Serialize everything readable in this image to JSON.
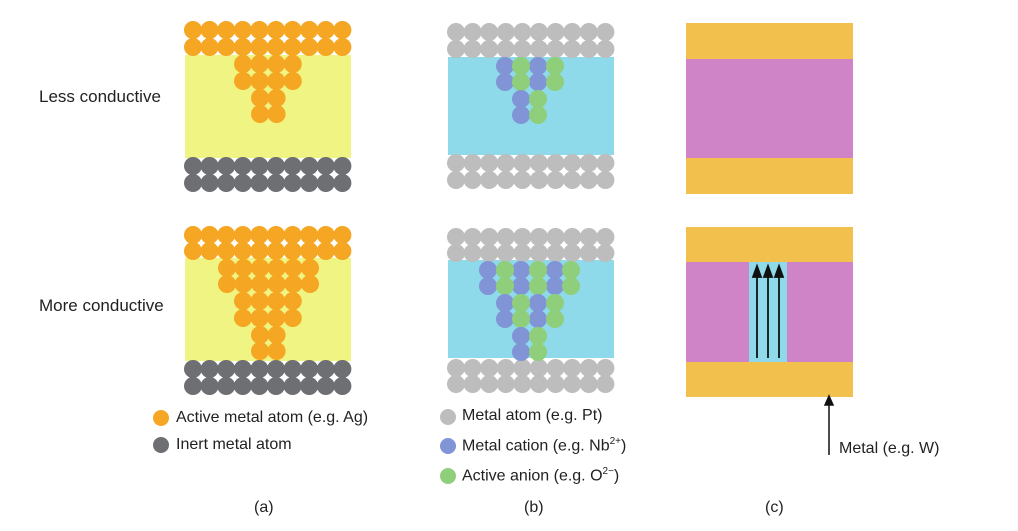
{
  "rows": {
    "top_label": "Less conductive",
    "bottom_label": "More conductive"
  },
  "panels": {
    "a": "(a)",
    "b": "(b)",
    "c": "(c)"
  },
  "legend_a": {
    "active_metal": "Active metal atom (e.g. Ag)",
    "inert_metal": "Inert metal atom"
  },
  "legend_b": {
    "metal_atom": "Metal atom (e.g. Pt)",
    "metal_cation_prefix": "Metal cation (e.g. Nb",
    "metal_cation_sup": "2+",
    "metal_cation_suffix": ")",
    "active_anion_prefix": "Active anion (e.g. O",
    "active_anion_sup": "2−",
    "active_anion_suffix": ")"
  },
  "legend_c": {
    "metal": "Metal (e.g. W)"
  },
  "colors": {
    "active_metal": "#f5a623",
    "inert_metal": "#6d6f73",
    "metal_atom": "#bdbdbd",
    "metal_cation": "#8094d6",
    "active_anion": "#8fcf7c",
    "yellow_layer": "#f0f483",
    "blue_layer": "#8ed9ea",
    "pink_layer": "#cf84c8",
    "gold_electrode": "#f2c04d",
    "channel_blue": "#8ed9ea"
  }
}
